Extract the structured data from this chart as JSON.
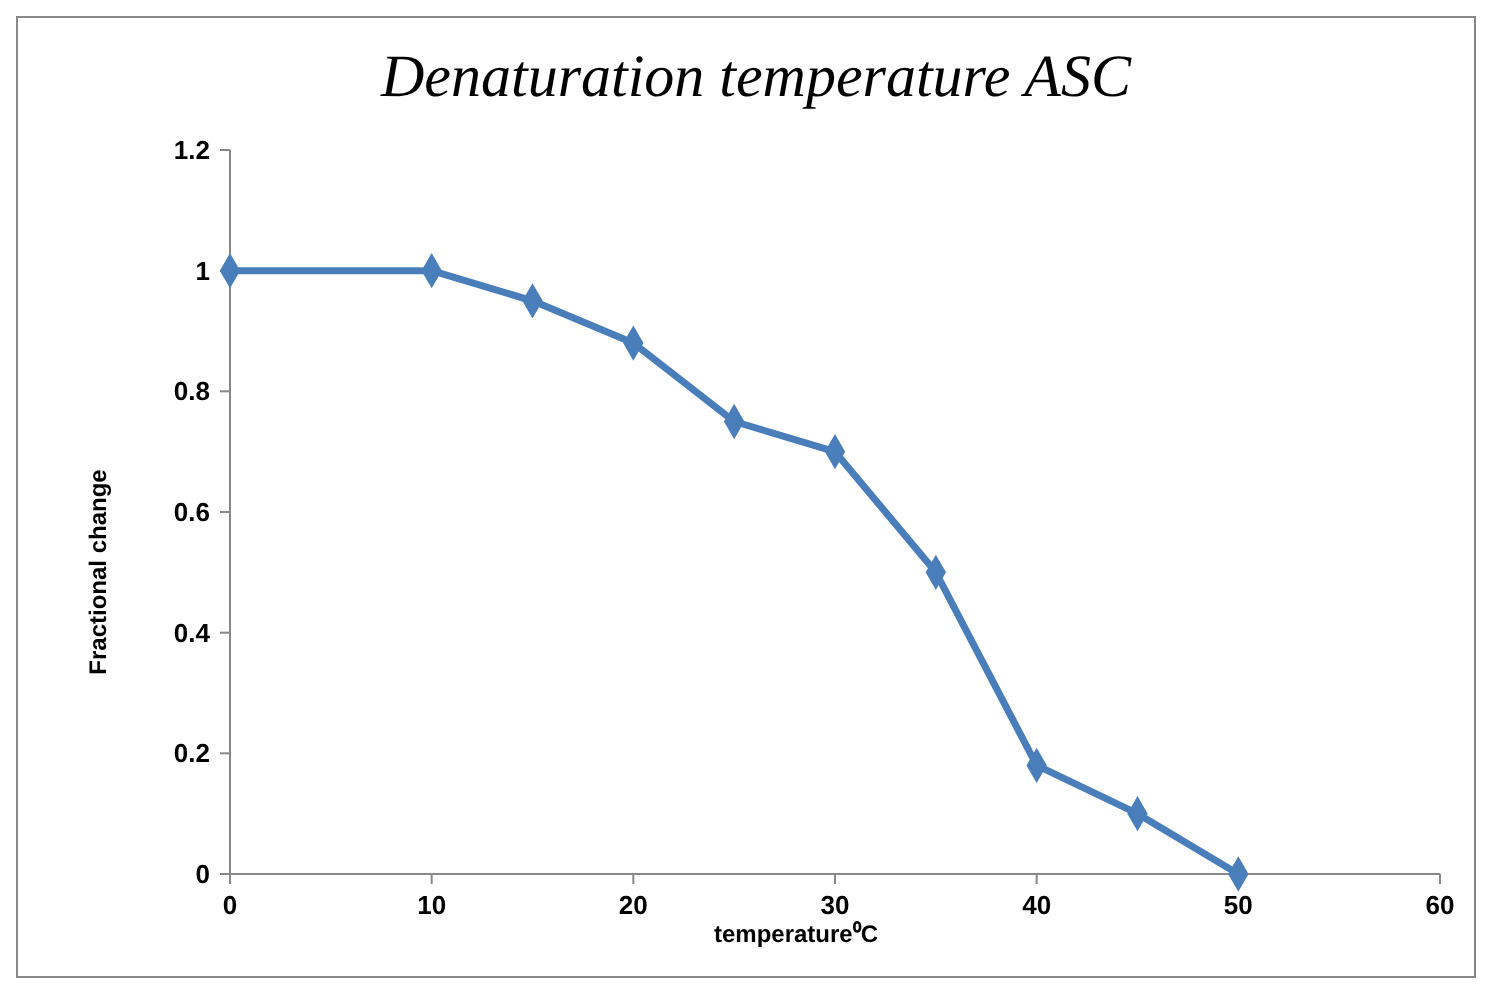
{
  "chart_data": {
    "type": "line",
    "title": "Denaturation temperature ASC",
    "xlabel": "temperature⁰C",
    "ylabel": "Fractional change",
    "x": [
      0,
      10,
      15,
      20,
      25,
      30,
      35,
      40,
      45,
      50
    ],
    "series": [
      {
        "color": "#4a7ebb",
        "values": [
          1,
          1,
          0.95,
          0.88,
          0.75,
          0.7,
          0.5,
          0.18,
          0.1,
          0
        ]
      }
    ],
    "xlim": [
      0,
      60
    ],
    "xticks": [
      0,
      10,
      20,
      30,
      40,
      50,
      60
    ],
    "ylim": [
      0,
      1.2
    ],
    "yticks": [
      0,
      0.2,
      0.4,
      0.6,
      0.8,
      1,
      1.2
    ],
    "grid": false,
    "marker": "diamond",
    "line_style": "solid"
  }
}
